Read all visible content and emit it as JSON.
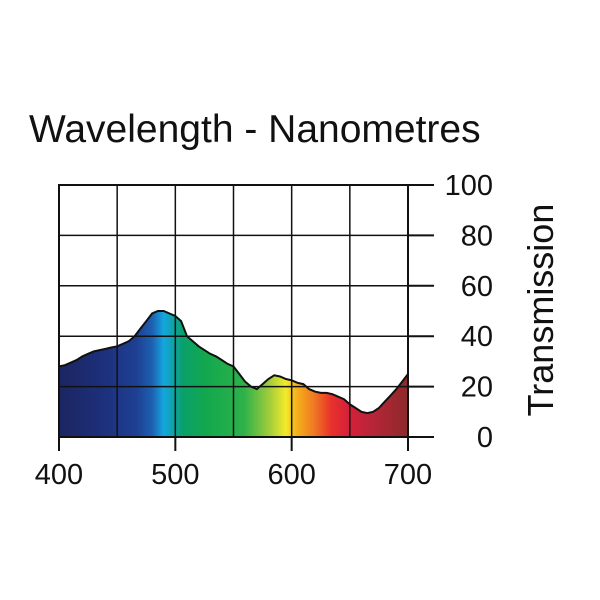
{
  "chart_data": {
    "type": "area",
    "title": "Wavelength - Nanometres",
    "xlabel": "",
    "ylabel": "Transmission",
    "xlim": [
      400,
      700
    ],
    "ylim": [
      0,
      100
    ],
    "x_ticks": [
      400,
      500,
      600,
      700
    ],
    "y_ticks": [
      0,
      20,
      40,
      60,
      80,
      100
    ],
    "grid": true,
    "y_axis_side": "right",
    "series": [
      {
        "name": "Transmission",
        "x": [
          400,
          405,
          410,
          415,
          420,
          425,
          430,
          435,
          440,
          445,
          450,
          455,
          460,
          465,
          470,
          475,
          480,
          485,
          490,
          495,
          500,
          505,
          510,
          515,
          520,
          525,
          530,
          535,
          540,
          545,
          550,
          555,
          560,
          565,
          570,
          575,
          580,
          585,
          590,
          595,
          600,
          605,
          610,
          615,
          620,
          625,
          630,
          635,
          640,
          645,
          650,
          655,
          660,
          665,
          670,
          675,
          680,
          685,
          690,
          695,
          700
        ],
        "y": [
          28,
          28.5,
          29.5,
          30.5,
          32,
          33,
          34,
          34.5,
          35,
          35.5,
          36,
          37,
          38,
          40,
          43,
          46,
          49,
          50,
          50,
          49,
          48,
          46,
          40,
          38,
          36,
          34.5,
          33,
          32,
          30.5,
          29,
          28,
          25,
          22,
          20,
          19,
          21,
          23,
          24.5,
          24,
          23,
          22.5,
          21.5,
          21,
          19,
          18,
          17.5,
          17.5,
          17,
          16,
          15,
          13,
          11.5,
          10,
          9.5,
          10,
          11.5,
          14,
          16.5,
          19,
          22,
          25
        ]
      }
    ],
    "fill": "visible-spectrum gradient"
  },
  "colors": {
    "spectrum": [
      "#1b2660",
      "#1d2f7a",
      "#1e3f93",
      "#1e5fb0",
      "#14a6e0",
      "#0aa06a",
      "#12a84e",
      "#2eb14a",
      "#9bcb3c",
      "#f3ea2a",
      "#f6b21c",
      "#ef7a22",
      "#e8312c",
      "#d6203a",
      "#b62538",
      "#8d2a2a"
    ]
  }
}
